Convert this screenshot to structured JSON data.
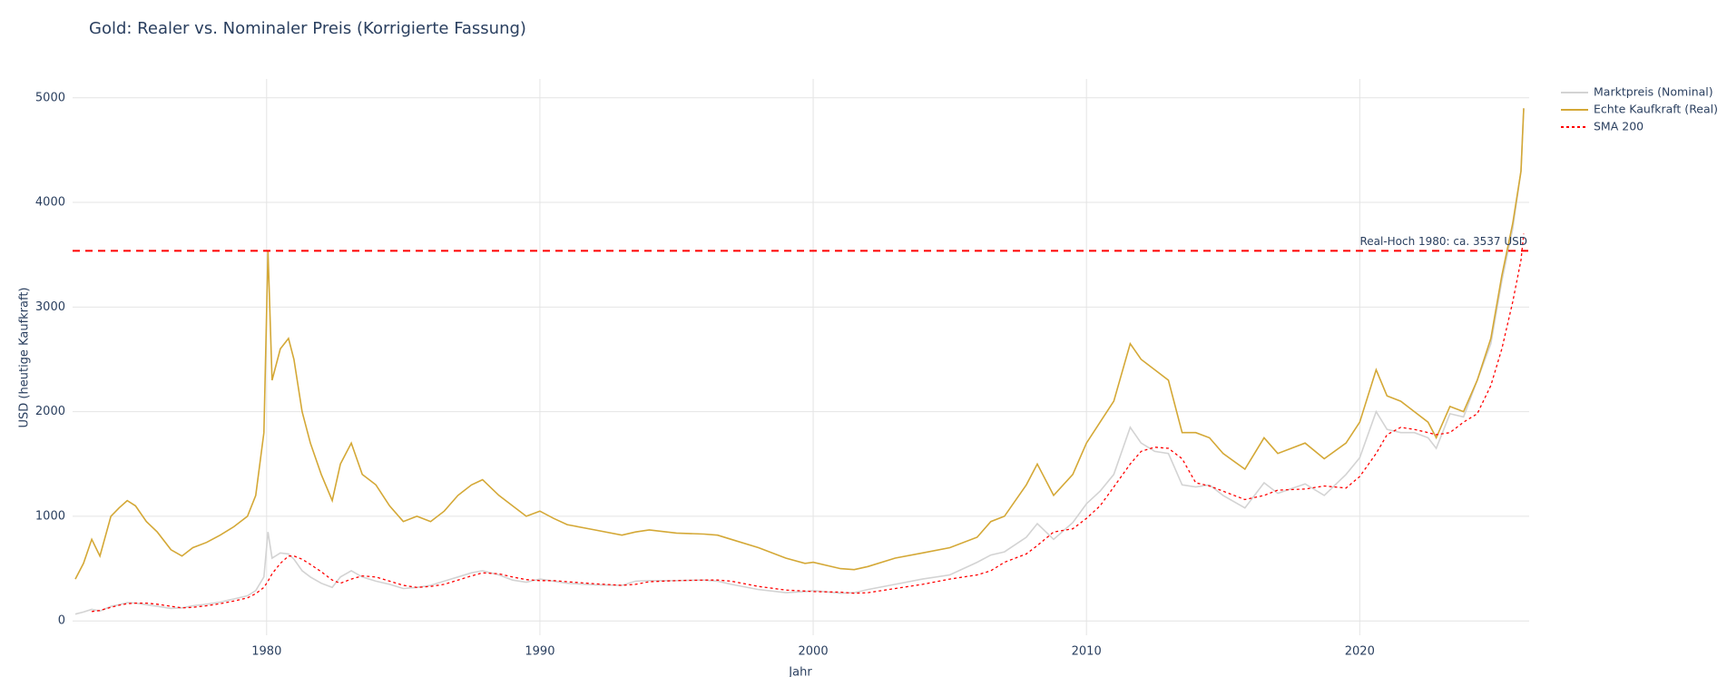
{
  "chart_data": {
    "type": "line",
    "title": "Gold: Realer vs. Nominaler Preis (Korrigierte Fassung)",
    "x_label": "Jahr",
    "y_label": "USD (heutige Kaufkraft)",
    "xlim": [
      1972.9,
      2026.2
    ],
    "ylim": [
      -137,
      5180
    ],
    "xticks": [
      1980,
      1990,
      2000,
      2010,
      2020
    ],
    "yticks": [
      0,
      1000,
      2000,
      3000,
      4000,
      5000
    ],
    "grid": true,
    "x": [
      1973.0,
      1973.3,
      1973.6,
      1973.9,
      1974.3,
      1974.6,
      1974.9,
      1975.2,
      1975.6,
      1976.0,
      1976.5,
      1976.9,
      1977.3,
      1977.8,
      1978.3,
      1978.8,
      1979.3,
      1979.6,
      1979.9,
      1980.05,
      1980.2,
      1980.5,
      1980.8,
      1981.0,
      1981.3,
      1981.6,
      1982.0,
      1982.4,
      1982.7,
      1983.1,
      1983.5,
      1984.0,
      1984.5,
      1985.0,
      1985.5,
      1986.0,
      1986.5,
      1987.0,
      1987.5,
      1987.9,
      1988.5,
      1989.0,
      1989.5,
      1990.0,
      1990.5,
      1991.0,
      1992.0,
      1993.0,
      1993.5,
      1994.0,
      1995.0,
      1996.0,
      1996.5,
      1997.0,
      1998.0,
      1999.0,
      1999.7,
      2000.0,
      2001.0,
      2001.5,
      2002.0,
      2003.0,
      2004.0,
      2005.0,
      2006.0,
      2006.5,
      2007.0,
      2007.8,
      2008.2,
      2008.8,
      2009.5,
      2010.0,
      2010.5,
      2011.0,
      2011.6,
      2012.0,
      2012.5,
      2013.0,
      2013.5,
      2014.0,
      2014.5,
      2015.0,
      2015.8,
      2016.5,
      2017.0,
      2018.0,
      2018.7,
      2019.5,
      2020.0,
      2020.6,
      2021.0,
      2021.5,
      2022.0,
      2022.5,
      2022.8,
      2023.3,
      2023.8,
      2024.3,
      2024.8,
      2025.2,
      2025.6,
      2025.9,
      2026.0
    ],
    "series": [
      {
        "name": "Marktpreis (Nominal)",
        "color": "#d3d3d3",
        "dash": "solid",
        "values": [
          65,
          85,
          110,
          95,
          140,
          155,
          175,
          170,
          155,
          140,
          120,
          125,
          145,
          160,
          180,
          210,
          240,
          290,
          420,
          850,
          600,
          650,
          640,
          590,
          480,
          420,
          360,
          320,
          420,
          480,
          420,
          380,
          350,
          310,
          320,
          340,
          380,
          420,
          460,
          480,
          440,
          390,
          370,
          400,
          380,
          360,
          345,
          340,
          380,
          385,
          385,
          390,
          380,
          350,
          300,
          270,
          280,
          290,
          265,
          270,
          300,
          350,
          400,
          440,
          560,
          630,
          660,
          800,
          930,
          780,
          940,
          1120,
          1240,
          1400,
          1850,
          1700,
          1620,
          1600,
          1300,
          1280,
          1300,
          1200,
          1080,
          1320,
          1220,
          1310,
          1200,
          1400,
          1560,
          2000,
          1830,
          1800,
          1800,
          1750,
          1650,
          1980,
          1950,
          2300,
          2650,
          3250,
          3750,
          4300,
          4900
        ]
      },
      {
        "name": "Echte Kaufkraft (Real)",
        "color": "#d4a836",
        "dash": "solid",
        "values": [
          400,
          550,
          780,
          620,
          1000,
          1080,
          1150,
          1100,
          950,
          850,
          680,
          620,
          700,
          750,
          820,
          900,
          1000,
          1200,
          1800,
          3537,
          2300,
          2600,
          2700,
          2500,
          2000,
          1700,
          1400,
          1150,
          1500,
          1700,
          1400,
          1300,
          1100,
          950,
          1000,
          950,
          1050,
          1200,
          1300,
          1350,
          1200,
          1100,
          1000,
          1050,
          980,
          920,
          870,
          820,
          850,
          870,
          840,
          830,
          820,
          780,
          700,
          600,
          550,
          560,
          500,
          490,
          520,
          600,
          650,
          700,
          800,
          950,
          1000,
          1300,
          1500,
          1200,
          1400,
          1700,
          1900,
          2100,
          2650,
          2500,
          2400,
          2300,
          1800,
          1800,
          1750,
          1600,
          1450,
          1750,
          1600,
          1700,
          1550,
          1700,
          1900,
          2400,
          2150,
          2100,
          2000,
          1900,
          1750,
          2050,
          2000,
          2300,
          2700,
          3300,
          3800,
          4300,
          4900
        ]
      },
      {
        "name": "SMA 200",
        "color": "#ff0000",
        "dash": "dot",
        "values": [
          null,
          null,
          90,
          100,
          130,
          150,
          165,
          170,
          170,
          160,
          140,
          125,
          130,
          145,
          165,
          190,
          220,
          260,
          320,
          380,
          450,
          550,
          620,
          620,
          590,
          540,
          470,
          390,
          360,
          400,
          430,
          420,
          380,
          340,
          320,
          330,
          350,
          390,
          430,
          460,
          450,
          420,
          395,
          385,
          385,
          375,
          355,
          340,
          350,
          375,
          385,
          390,
          390,
          380,
          330,
          295,
          285,
          280,
          275,
          265,
          270,
          310,
          350,
          400,
          440,
          480,
          560,
          640,
          720,
          850,
          880,
          980,
          1100,
          1280,
          1500,
          1620,
          1660,
          1650,
          1550,
          1320,
          1290,
          1240,
          1160,
          1200,
          1250,
          1260,
          1290,
          1270,
          1380,
          1600,
          1780,
          1850,
          1830,
          1800,
          1780,
          1800,
          1900,
          1980,
          2250,
          2600,
          3050,
          3450,
          3700
        ]
      }
    ],
    "annotations": [
      {
        "text": "Real-Hoch 1980: ca. 3537 USD",
        "y": 3537,
        "color": "#ff0000"
      }
    ],
    "legend_position": "right"
  }
}
